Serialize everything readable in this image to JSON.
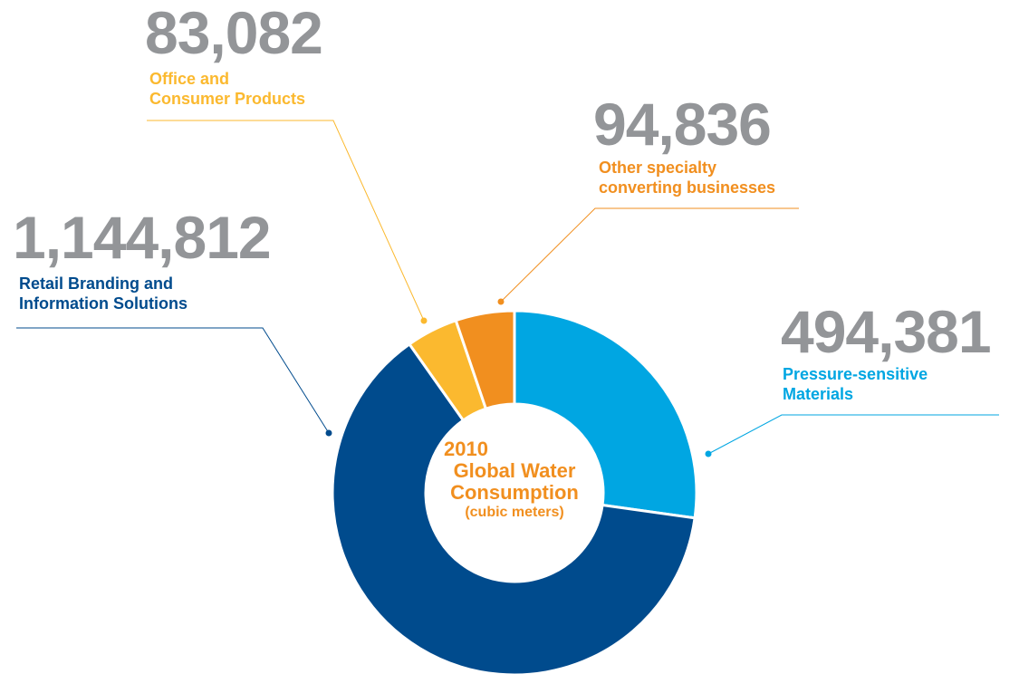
{
  "chart_data": {
    "type": "pie",
    "style": "donut",
    "center_label": {
      "line1": "2010",
      "line2": "Global Water",
      "line3": "Consumption",
      "line4": "(cubic meters)"
    },
    "slices": [
      {
        "value_label": "494,381",
        "value": 494381,
        "label_line1": "Pressure-sensitive",
        "label_line2": "Materials",
        "color": "#00a6e2"
      },
      {
        "value_label": "1,144,812",
        "value": 1144812,
        "label_line1": "Retail Branding and",
        "label_line2": "Information Solutions",
        "color": "#004b8d"
      },
      {
        "value_label": "83,082",
        "value": 83082,
        "label_line1": "Office and",
        "label_line2": "Consumer Products",
        "color": "#fbb92f"
      },
      {
        "value_label": "94,836",
        "value": 94836,
        "label_line1": "Other specialty",
        "label_line2": "converting businesses",
        "color": "#f18f1f"
      }
    ],
    "center_color": "#f18f1f",
    "value_color": "#939598"
  }
}
